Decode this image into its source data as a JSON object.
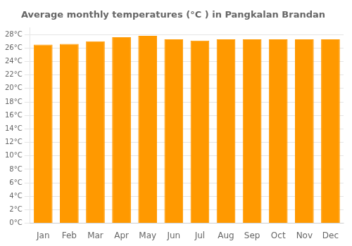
{
  "chart_data": {
    "type": "bar",
    "title": "Average monthly temperatures (°C ) in Pangkalan Brandan",
    "categories": [
      "Jan",
      "Feb",
      "Mar",
      "Apr",
      "May",
      "Jun",
      "Jul",
      "Aug",
      "Sep",
      "Oct",
      "Nov",
      "Dec"
    ],
    "values": [
      26.5,
      26.6,
      27.0,
      27.6,
      27.8,
      27.3,
      27.1,
      27.3,
      27.3,
      27.3,
      27.3,
      27.3
    ],
    "color": "#FF9900",
    "ylim": [
      0,
      29
    ],
    "yticks": [
      {
        "value": 0,
        "label": "0°C"
      },
      {
        "value": 2,
        "label": "2°C"
      },
      {
        "value": 4,
        "label": "4°C"
      },
      {
        "value": 6,
        "label": "6°C"
      },
      {
        "value": 8,
        "label": "8°C"
      },
      {
        "value": 10,
        "label": "10°C"
      },
      {
        "value": 12,
        "label": "12°C"
      },
      {
        "value": 14,
        "label": "14°C"
      },
      {
        "value": 16,
        "label": "16°C"
      },
      {
        "value": 18,
        "label": "18°C"
      },
      {
        "value": 20,
        "label": "20°C"
      },
      {
        "value": 22,
        "label": "22°C"
      },
      {
        "value": 24,
        "label": "24°C"
      },
      {
        "value": 26,
        "label": "26°C"
      },
      {
        "value": 28,
        "label": "28°C"
      }
    ],
    "grid": true
  }
}
